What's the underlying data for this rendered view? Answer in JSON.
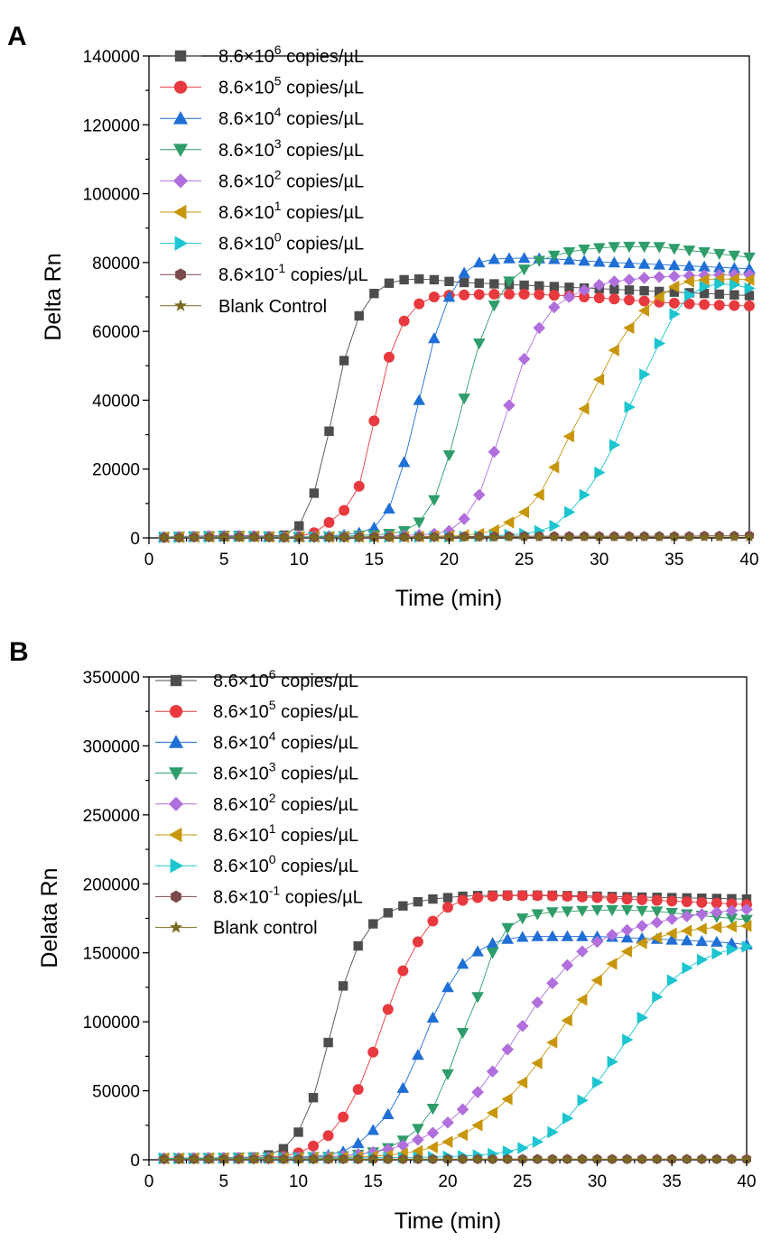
{
  "chart_data": [
    {
      "type": "line",
      "panel": "A",
      "xlabel": "Time (min)",
      "ylabel": "Delta Rn",
      "xlim": [
        0,
        40
      ],
      "ylim": [
        0,
        140000
      ],
      "xticks": [
        0,
        5,
        10,
        15,
        20,
        25,
        30,
        35,
        40
      ],
      "yticks": [
        0,
        20000,
        40000,
        60000,
        80000,
        100000,
        120000,
        140000
      ],
      "tick_labels_x": [
        "0",
        "5",
        "10",
        "15",
        "20",
        "25",
        "30",
        "35",
        "40"
      ],
      "tick_labels_y": [
        "0",
        "20000",
        "40000",
        "60000",
        "80000",
        "100000",
        "120000",
        "140000"
      ],
      "legend_position": "top-left",
      "x": [
        1,
        2,
        3,
        4,
        5,
        6,
        7,
        8,
        9,
        10,
        11,
        12,
        13,
        14,
        15,
        16,
        17,
        18,
        19,
        20,
        21,
        22,
        23,
        24,
        25,
        26,
        27,
        28,
        29,
        30,
        31,
        32,
        33,
        34,
        35,
        36,
        37,
        38,
        39,
        40
      ],
      "series": [
        {
          "name_base": "8.6×10",
          "name_exp": "6",
          "name_suffix": " copies/µL",
          "color": "#4d4d4d",
          "marker": "square",
          "values": [
            300,
            400,
            500,
            600,
            700,
            700,
            600,
            500,
            800,
            3500,
            13000,
            31000,
            51500,
            64500,
            71000,
            74000,
            75000,
            75200,
            75000,
            74500,
            74200,
            74000,
            73800,
            73600,
            73400,
            73200,
            73000,
            72800,
            72600,
            72400,
            72200,
            72000,
            71800,
            71600,
            71400,
            71200,
            71000,
            70800,
            70600,
            70400
          ]
        },
        {
          "name_base": "8.6×10",
          "name_exp": "5",
          "name_suffix": " copies/µL",
          "color": "#e8393f",
          "marker": "circle",
          "values": [
            200,
            300,
            400,
            500,
            600,
            600,
            500,
            400,
            300,
            500,
            1500,
            4500,
            8000,
            15000,
            34000,
            52500,
            63000,
            68000,
            70000,
            70500,
            70600,
            70700,
            70800,
            70800,
            70800,
            70700,
            70500,
            70300,
            70000,
            69700,
            69400,
            69100,
            68800,
            68500,
            68200,
            68000,
            67800,
            67600,
            67500,
            67400
          ]
        },
        {
          "name_base": "8.6×10",
          "name_exp": "4",
          "name_suffix": " copies/µL",
          "color": "#1f6fd6",
          "marker": "triangle-up",
          "values": [
            200,
            300,
            400,
            500,
            600,
            600,
            500,
            400,
            300,
            300,
            400,
            600,
            900,
            1500,
            3000,
            8500,
            22000,
            40000,
            58000,
            70000,
            77000,
            80000,
            81000,
            81200,
            81300,
            81200,
            81000,
            80800,
            80500,
            80200,
            80000,
            79800,
            79600,
            79400,
            79200,
            79000,
            78800,
            78600,
            78400,
            78200
          ]
        },
        {
          "name_base": "8.6×10",
          "name_exp": "3",
          "name_suffix": " copies/µL",
          "color": "#2e9d69",
          "marker": "triangle-down",
          "values": [
            200,
            300,
            400,
            500,
            600,
            600,
            500,
            400,
            300,
            300,
            300,
            400,
            500,
            700,
            900,
            1200,
            2000,
            4500,
            11000,
            24000,
            40500,
            56500,
            67500,
            74500,
            78000,
            80500,
            82000,
            83000,
            83800,
            84200,
            84500,
            84600,
            84600,
            84500,
            84000,
            83500,
            83000,
            82500,
            82000,
            81500
          ]
        },
        {
          "name_base": "8.6×10",
          "name_exp": "2",
          "name_suffix": " copies/µL",
          "color": "#b06fdc",
          "marker": "diamond",
          "values": [
            200,
            300,
            400,
            500,
            600,
            600,
            500,
            400,
            300,
            300,
            300,
            300,
            300,
            300,
            400,
            500,
            700,
            900,
            1200,
            2000,
            5500,
            12500,
            25000,
            38500,
            52000,
            61000,
            67000,
            70000,
            72000,
            73500,
            74500,
            75000,
            75500,
            75800,
            76000,
            76200,
            76300,
            76400,
            76500,
            76500
          ]
        },
        {
          "name_base": "8.6×10",
          "name_exp": "1",
          "name_suffix": " copies/µL",
          "color": "#c8960a",
          "marker": "triangle-left",
          "values": [
            200,
            200,
            300,
            300,
            400,
            400,
            400,
            300,
            300,
            300,
            300,
            300,
            300,
            300,
            300,
            300,
            300,
            400,
            500,
            600,
            800,
            1200,
            2200,
            4500,
            7500,
            12500,
            20500,
            29500,
            37500,
            46000,
            54500,
            61000,
            66000,
            70000,
            73000,
            74500,
            75000,
            75200,
            75200,
            75000
          ]
        },
        {
          "name_base": "8.6×10",
          "name_exp": "0",
          "name_suffix": " copies/µL",
          "color": "#1cc5cf",
          "marker": "triangle-right",
          "values": [
            200,
            200,
            300,
            300,
            400,
            400,
            400,
            300,
            300,
            300,
            300,
            300,
            300,
            300,
            300,
            300,
            300,
            300,
            300,
            300,
            400,
            500,
            600,
            900,
            1200,
            2000,
            3500,
            7500,
            12500,
            19000,
            27000,
            38000,
            47500,
            56500,
            65000,
            70500,
            73000,
            73800,
            73500,
            72500
          ]
        },
        {
          "name_base": "8.6×10",
          "name_exp": "-1",
          "name_suffix": " copies/µL",
          "color": "#7b4a4a",
          "marker": "hexagon",
          "values": [
            100,
            100,
            150,
            200,
            300,
            300,
            300,
            200,
            150,
            150,
            150,
            200,
            200,
            300,
            300,
            300,
            300,
            300,
            300,
            300,
            400,
            400,
            400,
            500,
            500,
            500,
            500,
            500,
            500,
            500,
            500,
            500,
            500,
            500,
            500,
            500,
            600,
            600,
            600,
            700
          ]
        },
        {
          "name_base": "Blank Control",
          "name_exp": "",
          "name_suffix": "",
          "color": "#7a6b1f",
          "marker": "star",
          "values": [
            100,
            100,
            100,
            100,
            100,
            100,
            100,
            100,
            100,
            100,
            100,
            100,
            100,
            100,
            100,
            100,
            150,
            150,
            150,
            150,
            150,
            150,
            150,
            200,
            200,
            200,
            200,
            200,
            200,
            200,
            200,
            200,
            200,
            200,
            200,
            200,
            200,
            200,
            200,
            200
          ]
        }
      ]
    },
    {
      "type": "line",
      "panel": "B",
      "xlabel": "Time (min)",
      "ylabel": "Delata Rn",
      "xlim": [
        0,
        40
      ],
      "ylim": [
        0,
        350000
      ],
      "xticks": [
        0,
        5,
        10,
        15,
        20,
        25,
        30,
        35,
        40
      ],
      "yticks": [
        0,
        50000,
        100000,
        150000,
        200000,
        250000,
        300000,
        350000
      ],
      "tick_labels_x": [
        "0",
        "5",
        "10",
        "15",
        "20",
        "25",
        "30",
        "35",
        "40"
      ],
      "tick_labels_y": [
        "0",
        "50000",
        "100000",
        "150000",
        "200000",
        "250000",
        "300000",
        "350000"
      ],
      "legend_position": "top-left",
      "x": [
        1,
        2,
        3,
        4,
        5,
        6,
        7,
        8,
        9,
        10,
        11,
        12,
        13,
        14,
        15,
        16,
        17,
        18,
        19,
        20,
        21,
        22,
        23,
        24,
        25,
        26,
        27,
        28,
        29,
        30,
        31,
        32,
        33,
        34,
        35,
        36,
        37,
        38,
        39,
        40
      ],
      "series": [
        {
          "name_base": "8.6×10",
          "name_exp": "6",
          "name_suffix": " copies/µL",
          "color": "#4d4d4d",
          "marker": "square",
          "values": [
            1000,
            1100,
            1200,
            1300,
            1500,
            1700,
            2000,
            3500,
            8000,
            20000,
            45000,
            85000,
            126000,
            155000,
            171000,
            179000,
            184000,
            187000,
            189000,
            190000,
            191000,
            191500,
            191800,
            191800,
            191800,
            191800,
            191700,
            191500,
            191300,
            191000,
            190800,
            190600,
            190400,
            190200,
            190000,
            189800,
            189600,
            189400,
            189200,
            189000
          ]
        },
        {
          "name_base": "8.6×10",
          "name_exp": "5",
          "name_suffix": " copies/µL",
          "color": "#e8393f",
          "marker": "circle",
          "values": [
            1000,
            1100,
            1200,
            1300,
            1400,
            1500,
            1600,
            1800,
            2500,
            5000,
            10000,
            17500,
            31000,
            51000,
            78000,
            109000,
            137000,
            158000,
            173000,
            183000,
            188000,
            190000,
            191000,
            191500,
            191500,
            191500,
            191300,
            191000,
            190500,
            190000,
            189500,
            189000,
            188500,
            188000,
            187500,
            187000,
            186500,
            186000,
            185500,
            185000
          ]
        },
        {
          "name_base": "8.6×10",
          "name_exp": "4",
          "name_suffix": " copies/µL",
          "color": "#1f6fd6",
          "marker": "triangle-up",
          "values": [
            1000,
            1100,
            1200,
            1300,
            1400,
            1500,
            1600,
            1700,
            1800,
            2000,
            2500,
            3500,
            6000,
            12000,
            21500,
            33000,
            52000,
            76000,
            103000,
            125000,
            142000,
            151000,
            157000,
            160000,
            161500,
            162000,
            162000,
            162000,
            162000,
            161800,
            161500,
            161000,
            160500,
            160000,
            159500,
            159000,
            158500,
            158000,
            157000,
            156000
          ]
        },
        {
          "name_base": "8.6×10",
          "name_exp": "3",
          "name_suffix": " copies/µL",
          "color": "#2e9d69",
          "marker": "triangle-down",
          "values": [
            1000,
            1100,
            1200,
            1300,
            1400,
            1500,
            1600,
            1700,
            1800,
            1900,
            2000,
            2200,
            2700,
            3700,
            5500,
            8500,
            14000,
            22500,
            37000,
            62000,
            92000,
            118000,
            150000,
            168000,
            175000,
            178000,
            179500,
            180000,
            180500,
            181000,
            181000,
            181000,
            180500,
            180000,
            179000,
            178000,
            177000,
            176000,
            175000,
            174000
          ]
        },
        {
          "name_base": "8.6×10",
          "name_exp": "2",
          "name_suffix": " copies/µL",
          "color": "#b06fdc",
          "marker": "diamond",
          "values": [
            1000,
            1000,
            1100,
            1100,
            1200,
            1300,
            1400,
            1500,
            1600,
            1700,
            1900,
            2200,
            3000,
            4000,
            5500,
            7500,
            10500,
            14500,
            19500,
            27000,
            36500,
            49000,
            64000,
            80000,
            97000,
            114000,
            128000,
            141000,
            151000,
            158000,
            163000,
            166500,
            169500,
            172000,
            174500,
            176500,
            178000,
            179500,
            180500,
            181500
          ]
        },
        {
          "name_base": "8.6×10",
          "name_exp": "1",
          "name_suffix": " copies/µL",
          "color": "#c8960a",
          "marker": "triangle-left",
          "values": [
            1000,
            1000,
            1000,
            1100,
            1100,
            1200,
            1200,
            1300,
            1300,
            1400,
            1500,
            1600,
            1800,
            2100,
            2600,
            3300,
            4500,
            6300,
            9000,
            13000,
            18000,
            25000,
            34000,
            44000,
            56000,
            70000,
            85000,
            101000,
            116000,
            130000,
            142000,
            151000,
            157000,
            161000,
            164000,
            166000,
            167500,
            168500,
            169000,
            169500
          ]
        },
        {
          "name_base": "8.6×10",
          "name_exp": "0",
          "name_suffix": " copies/µL",
          "color": "#1cc5cf",
          "marker": "triangle-right",
          "values": [
            1000,
            1000,
            1000,
            1000,
            1100,
            1100,
            1100,
            1200,
            1200,
            1200,
            1200,
            1300,
            1300,
            1400,
            1500,
            1600,
            1700,
            1800,
            2000,
            2300,
            2700,
            3300,
            4300,
            6000,
            8500,
            13000,
            20000,
            30000,
            43000,
            56000,
            71000,
            87000,
            103000,
            118000,
            130000,
            139000,
            145000,
            149500,
            152500,
            154500
          ]
        },
        {
          "name_base": "8.6×10",
          "name_exp": "-1",
          "name_suffix": " copies/µL",
          "color": "#7b4a4a",
          "marker": "hexagon",
          "values": [
            500,
            500,
            500,
            500,
            500,
            500,
            500,
            500,
            500,
            500,
            500,
            500,
            500,
            500,
            500,
            500,
            500,
            500,
            500,
            500,
            500,
            500,
            500,
            500,
            500,
            500,
            500,
            500,
            500,
            500,
            500,
            500,
            500,
            500,
            500,
            500,
            500,
            500,
            500,
            500
          ]
        },
        {
          "name_base": "Blank control",
          "name_exp": "",
          "name_suffix": "",
          "color": "#7a6b1f",
          "marker": "star",
          "values": [
            300,
            300,
            300,
            300,
            300,
            300,
            300,
            300,
            300,
            300,
            300,
            300,
            300,
            300,
            300,
            300,
            300,
            300,
            300,
            300,
            300,
            300,
            300,
            300,
            300,
            300,
            300,
            300,
            300,
            300,
            300,
            300,
            300,
            300,
            300,
            300,
            300,
            300,
            300,
            300
          ]
        }
      ]
    }
  ]
}
